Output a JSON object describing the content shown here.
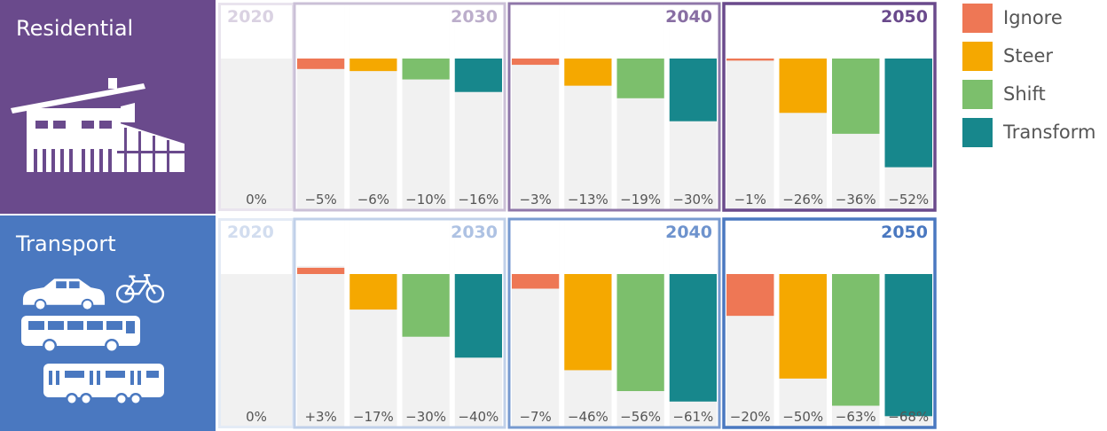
{
  "chart_data": {
    "type": "bar",
    "unit": "%",
    "series_names": [
      "Ignore",
      "Steer",
      "Shift",
      "Transform"
    ],
    "colors": {
      "Ignore": "#ee7755",
      "Steer": "#f5a800",
      "Shift": "#7cbf6c",
      "Transform": "#17878c"
    },
    "baseline": {
      "year": "2020",
      "label": "0%"
    },
    "years": [
      "2030",
      "2040",
      "2050"
    ],
    "ylim": [
      -70,
      10
    ],
    "panels": [
      {
        "sector": "Residential",
        "icon": "house-icon",
        "color": "#6a4a8c",
        "values": {
          "2030": [
            -5,
            -6,
            -10,
            -16
          ],
          "2040": [
            -3,
            -13,
            -19,
            -30
          ],
          "2050": [
            -1,
            -26,
            -36,
            -52
          ]
        },
        "labels": {
          "2030": [
            "−5%",
            "−6%",
            "−10%",
            "−16%"
          ],
          "2040": [
            "−3%",
            "−13%",
            "−19%",
            "−30%"
          ],
          "2050": [
            "−1%",
            "−26%",
            "−36%",
            "−52%"
          ]
        }
      },
      {
        "sector": "Transport",
        "icon": "vehicles-icon",
        "color": "#4a78c0",
        "values": {
          "2030": [
            3,
            -17,
            -30,
            -40
          ],
          "2040": [
            -7,
            -46,
            -56,
            -61
          ],
          "2050": [
            -20,
            -50,
            -63,
            -68
          ]
        },
        "labels": {
          "2030": [
            "+3%",
            "−17%",
            "−30%",
            "−40%"
          ],
          "2040": [
            "−7%",
            "−46%",
            "−56%",
            "−61%"
          ],
          "2050": [
            "−20%",
            "−50%",
            "−63%",
            "−68%"
          ]
        }
      }
    ]
  }
}
